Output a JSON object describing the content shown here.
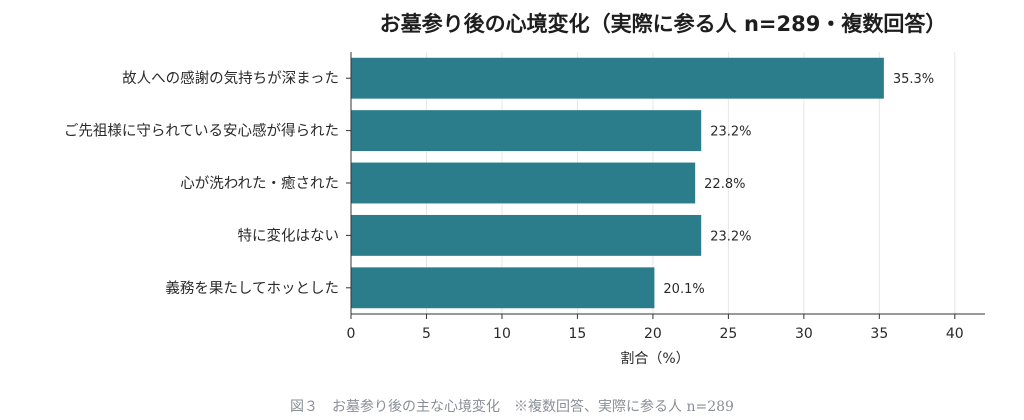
{
  "chart_data": {
    "type": "bar",
    "orientation": "horizontal",
    "title": "お墓参り後の心境変化（実際に参る人 n=289・複数回答）",
    "categories": [
      "故人への感謝の気持ちが深まった",
      "ご先祖様に守られている安心感が得られた",
      "心が洗われた・癒された",
      "特に変化はない",
      "義務を果たしてホッとした"
    ],
    "values": [
      35.3,
      23.2,
      22.8,
      23.2,
      20.1
    ],
    "value_labels": [
      "35.3%",
      "23.2%",
      "22.8%",
      "23.2%",
      "20.1%"
    ],
    "xlabel": "割合（%）",
    "ylabel": "",
    "xlim": [
      0,
      42
    ],
    "xticks": [
      0,
      5,
      10,
      15,
      20,
      25,
      30,
      35,
      40
    ],
    "grid": "vertical",
    "bar_color": "#2b7d8b"
  },
  "caption": "図３　お墓参り後の主な心境変化　※複数回答、実際に参る人 n=289"
}
